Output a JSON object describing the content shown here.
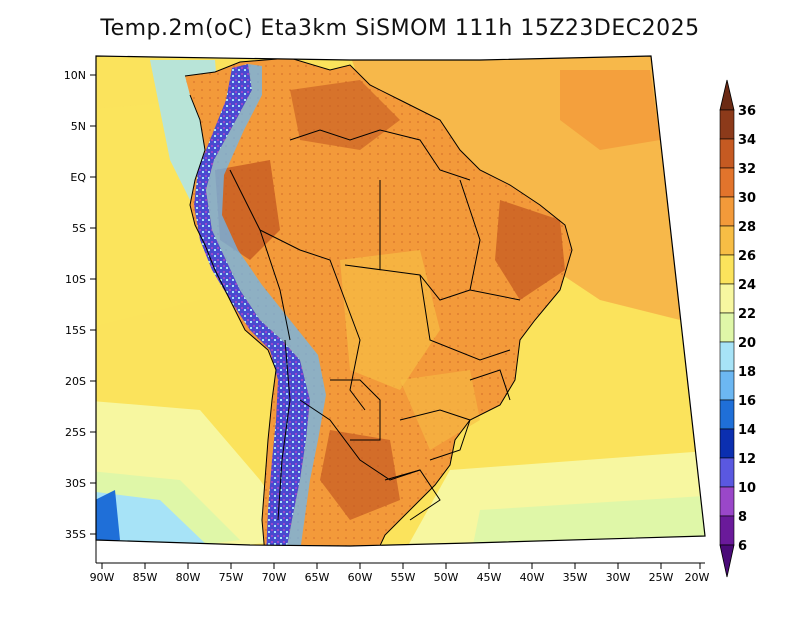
{
  "map_title": "Temp.2m(oC) Eta3km SiSMOM 111h 15Z23DEC2025",
  "lat_labels": [
    "10N",
    "5N",
    "EQ",
    "5S",
    "10S",
    "15S",
    "20S",
    "25S",
    "30S",
    "35S"
  ],
  "lon_labels": [
    "90W",
    "85W",
    "80W",
    "75W",
    "70W",
    "65W",
    "60W",
    "55W",
    "50W",
    "45W",
    "40W",
    "35W",
    "30W",
    "25W",
    "20W"
  ],
  "colorbar": {
    "unit": "oC",
    "levels": [
      36,
      34,
      32,
      30,
      28,
      26,
      24,
      22,
      20,
      18,
      16,
      14,
      12,
      10,
      8,
      6
    ],
    "colors": {
      "above_36": "#6b2a14",
      "34_36": "#8c3a1a",
      "32_34": "#c55a22",
      "30_32": "#e2742c",
      "28_30": "#f39a3a",
      "26_28": "#f7bd45",
      "24_26": "#fbe35c",
      "22_24": "#f7f7a0",
      "20_22": "#dff7a8",
      "18_20": "#a7e3f7",
      "16_18": "#6cb7f2",
      "14_16": "#1f6fd8",
      "12_14": "#0b2fb0",
      "10_12": "#5a58e0",
      "8_10": "#9a47c9",
      "6_8": "#6a1a9a",
      "below_6": "#4a0a78"
    }
  },
  "palette": {
    "ocean_warm": "#f7b84a",
    "ocean_mid": "#fbe35c",
    "ocean_cool": "#dff7a8",
    "ocean_cold": "#a7e3f7",
    "land_hot": "#e2742c",
    "land_very_hot": "#c55a22",
    "andes": "#3b3fc7",
    "border": "#000000"
  }
}
